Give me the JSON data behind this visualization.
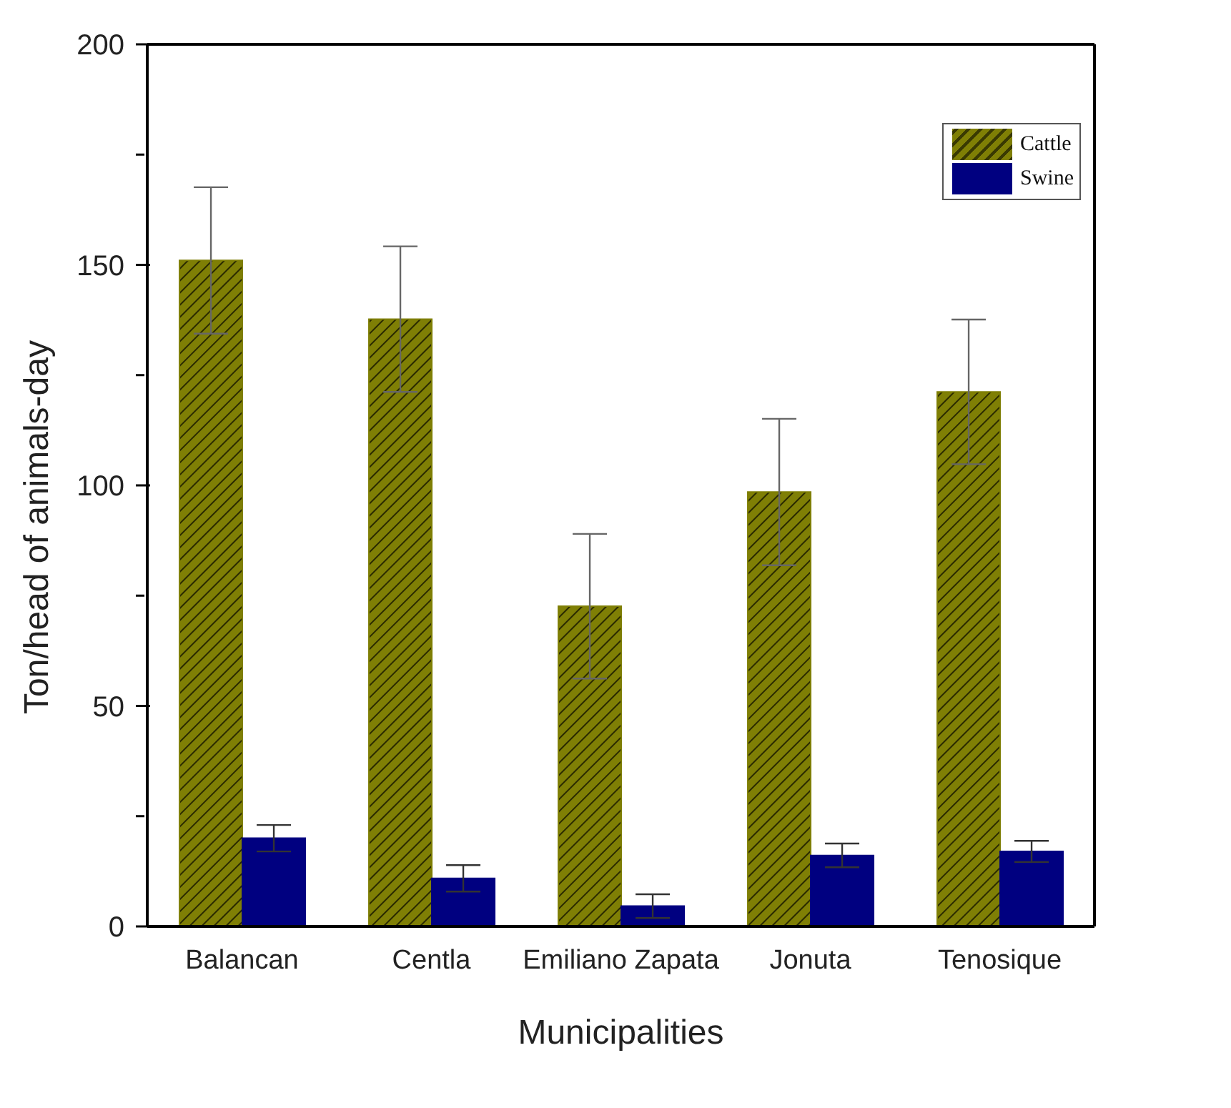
{
  "chart_data": {
    "type": "bar",
    "xlabel": "Municipalities",
    "ylabel": "Ton/head of animals-day",
    "categories": [
      "Balancan",
      "Centla",
      "Emiliano Zapata",
      "Jonuta",
      "Tenosique"
    ],
    "series": [
      {
        "name": "Cattle",
        "color": "#7f7f05",
        "values": [
          151,
          137.7,
          72.6,
          98.5,
          121.2
        ],
        "errors": [
          16.6,
          16.5,
          16.4,
          16.6,
          16.4
        ]
      },
      {
        "name": "Swine",
        "color": "#000080",
        "values": [
          20,
          10.9,
          4.6,
          16.1,
          17
        ],
        "errors": [
          3,
          3,
          2.7,
          2.7,
          2.4
        ]
      }
    ],
    "ylim": [
      0,
      200
    ],
    "yticks": [
      0,
      {
        "value": 25,
        "label": null
      },
      50,
      {
        "value": 75,
        "label": null
      },
      100,
      {
        "value": 125,
        "label": null
      },
      150,
      {
        "value": 175,
        "label": null
      },
      200
    ],
    "grid": false,
    "legend": "top right"
  }
}
